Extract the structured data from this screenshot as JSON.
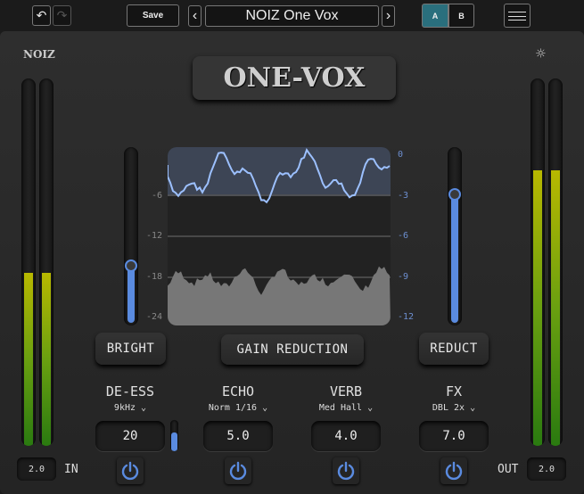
{
  "header": {
    "save_label": "Save",
    "preset_name": "NOIZ One Vox",
    "ab": [
      "A",
      "B"
    ],
    "active_ab": "A"
  },
  "brand": {
    "logo": "NOIZ",
    "title": "ONE-VOX"
  },
  "colors": {
    "accent": "#5a8be0",
    "ab_active": "#2a6f7d",
    "meter_top": "#b8b800",
    "meter_bottom": "#2a7a10"
  },
  "meters": {
    "in_levels": [
      0.47,
      0.47
    ],
    "out_levels": [
      0.75,
      0.75
    ],
    "in_value": "2.0",
    "in_label": "IN",
    "out_value": "2.0",
    "out_label": "OUT"
  },
  "bright": {
    "label": "BRIGHT",
    "level": 0.33
  },
  "reduct": {
    "label": "REDUCT",
    "level": 0.74
  },
  "graph": {
    "button_label": "GAIN REDUCTION",
    "left_ticks": [
      "0",
      "-6",
      "-12",
      "-18",
      "-24"
    ],
    "right_ticks": [
      "0",
      "-3",
      "-6",
      "-9",
      "-12"
    ]
  },
  "modules": [
    {
      "title": "DE-ESS",
      "option": "9kHz",
      "value": "20",
      "on": true
    },
    {
      "title": "ECHO",
      "option": "Norm 1/16",
      "value": "5.0",
      "on": true
    },
    {
      "title": "VERB",
      "option": "Med Hall",
      "value": "4.0",
      "on": true
    },
    {
      "title": "FX",
      "option": "DBL 2x",
      "value": "7.0",
      "on": true
    }
  ],
  "deess_slider_level": 0.6
}
